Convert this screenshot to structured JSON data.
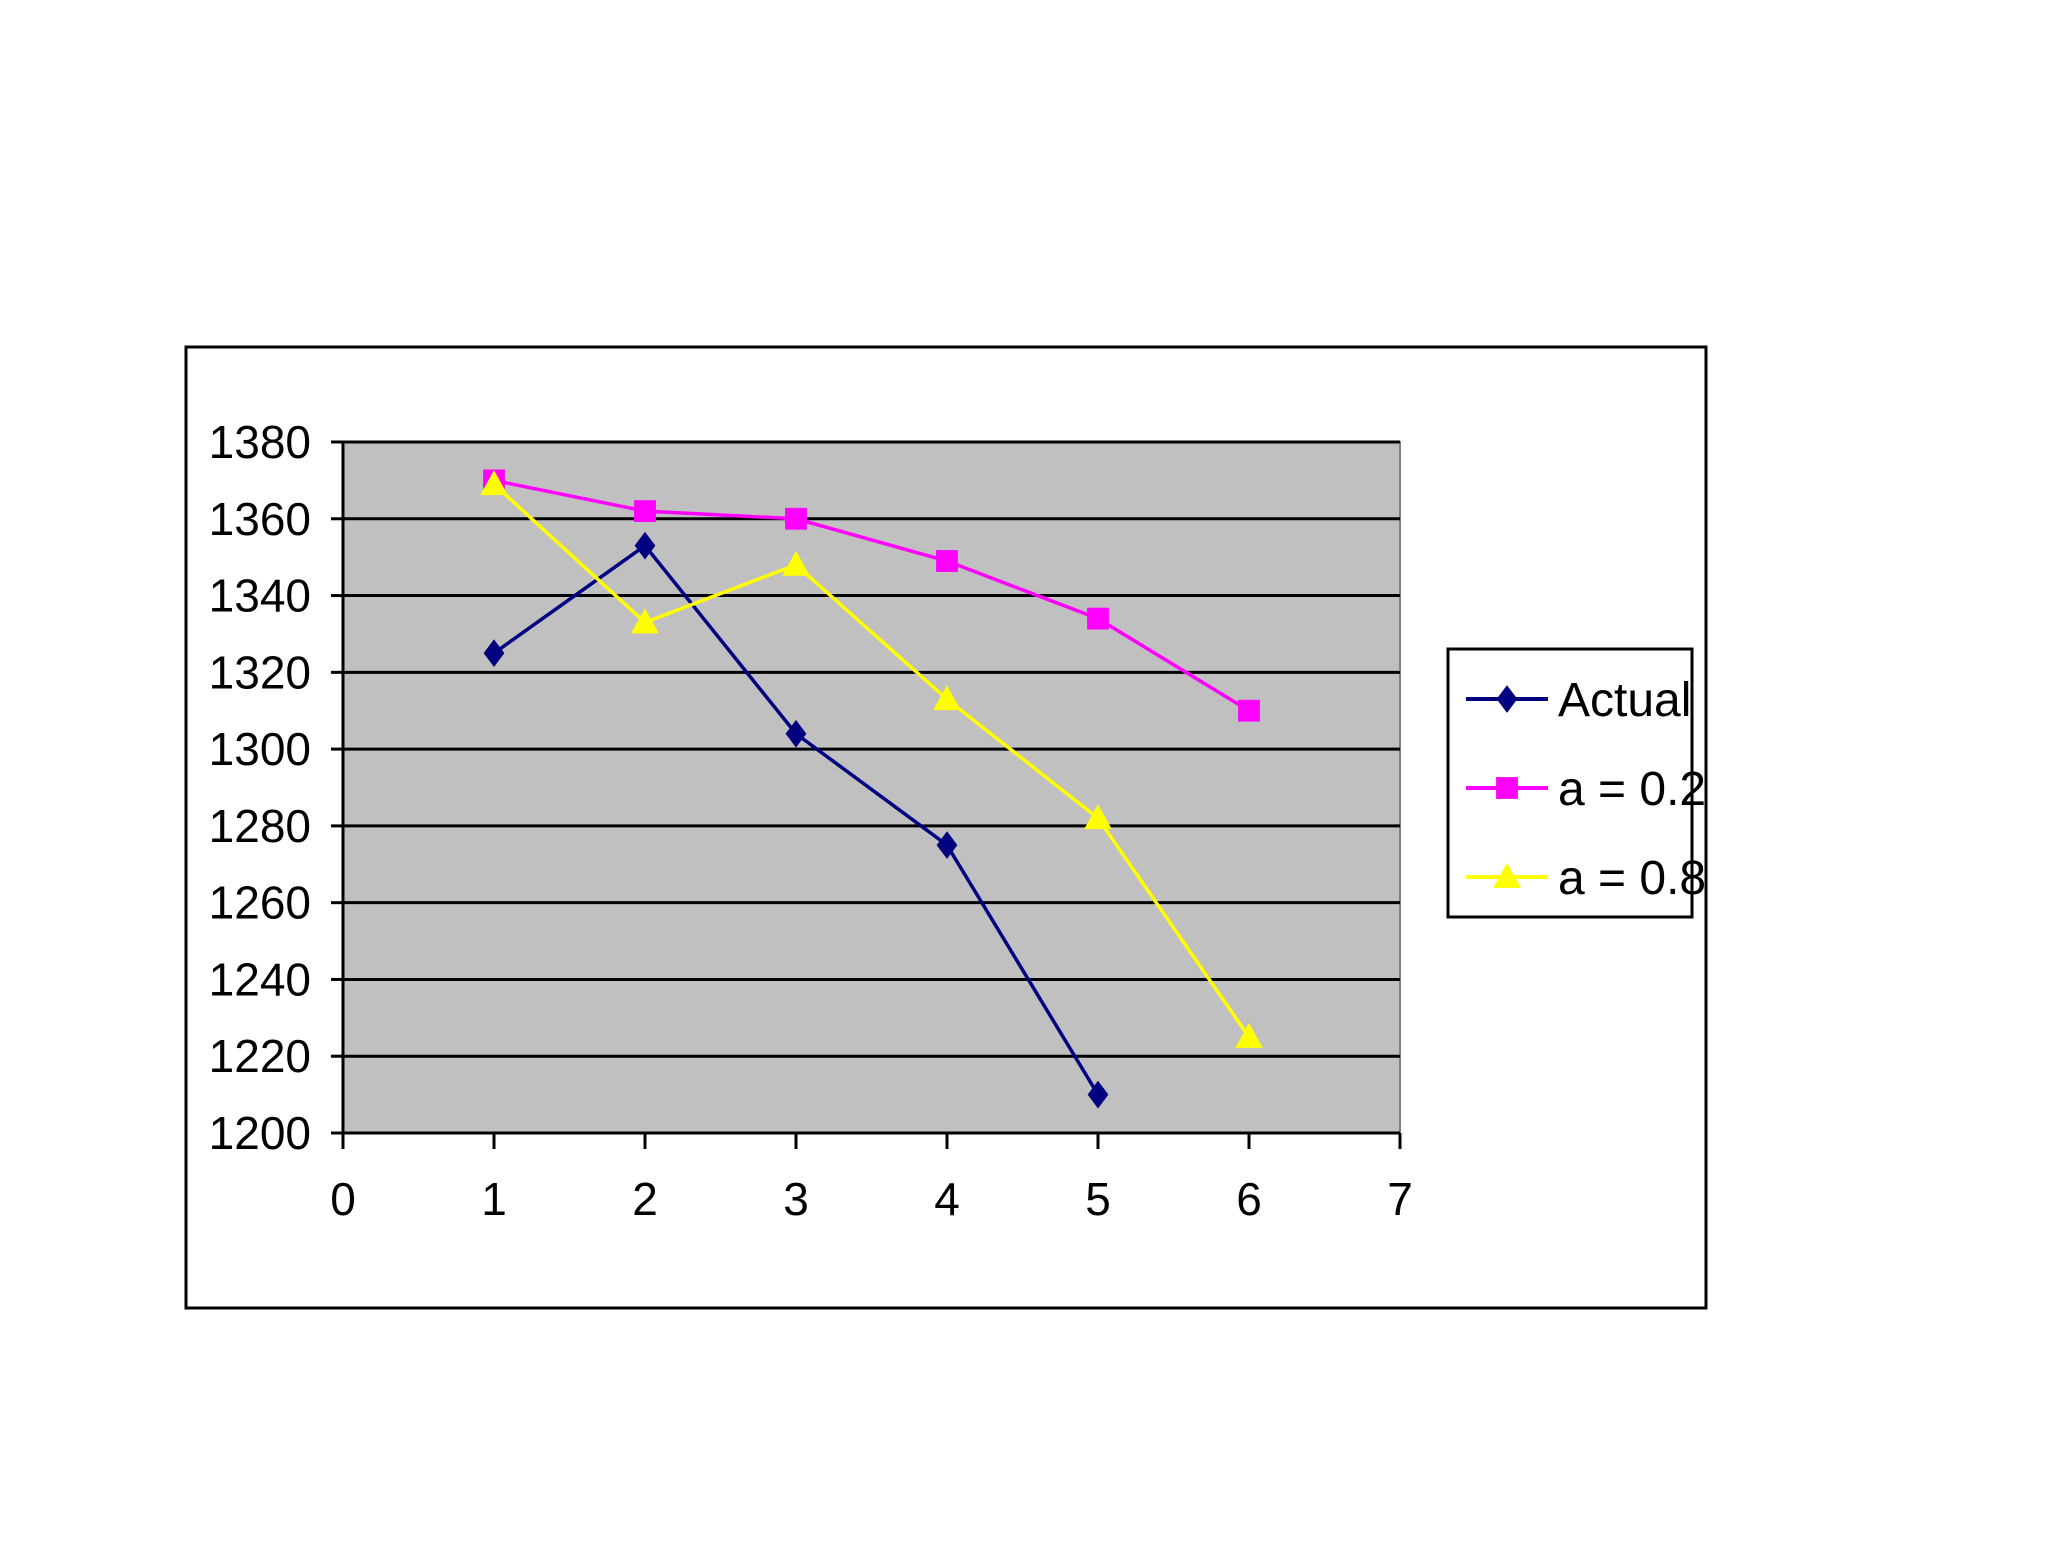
{
  "colors": {
    "background": "#ffffff",
    "plot_area": "#c0c0c0",
    "gridline": "#000000",
    "frame": "#000000"
  },
  "chart_data": {
    "type": "line",
    "title": "",
    "xlabel": "",
    "ylabel": "",
    "xlim": [
      0,
      7
    ],
    "ylim": [
      1200,
      1380
    ],
    "x_ticks": [
      "0",
      "1",
      "2",
      "3",
      "4",
      "5",
      "6",
      "7"
    ],
    "y_ticks": [
      "1200",
      "1220",
      "1240",
      "1260",
      "1280",
      "1300",
      "1320",
      "1340",
      "1360",
      "1380"
    ],
    "grid": true,
    "legend_position": "right",
    "series": [
      {
        "name": "Actual",
        "color": "#000080",
        "marker": "diamond",
        "x": [
          1,
          2,
          3,
          4,
          5
        ],
        "y": [
          1325,
          1353,
          1304,
          1275,
          1210
        ]
      },
      {
        "name": "a = 0.2",
        "color": "#ff00ff",
        "marker": "square",
        "x": [
          1,
          2,
          3,
          4,
          5,
          6
        ],
        "y": [
          1370,
          1362,
          1360,
          1349,
          1334,
          1310
        ]
      },
      {
        "name": "a = 0.8",
        "color": "#ffff00",
        "marker": "triangle",
        "x": [
          1,
          2,
          3,
          4,
          5,
          6
        ],
        "y": [
          1369,
          1333,
          1348,
          1313,
          1282,
          1225
        ]
      }
    ]
  }
}
